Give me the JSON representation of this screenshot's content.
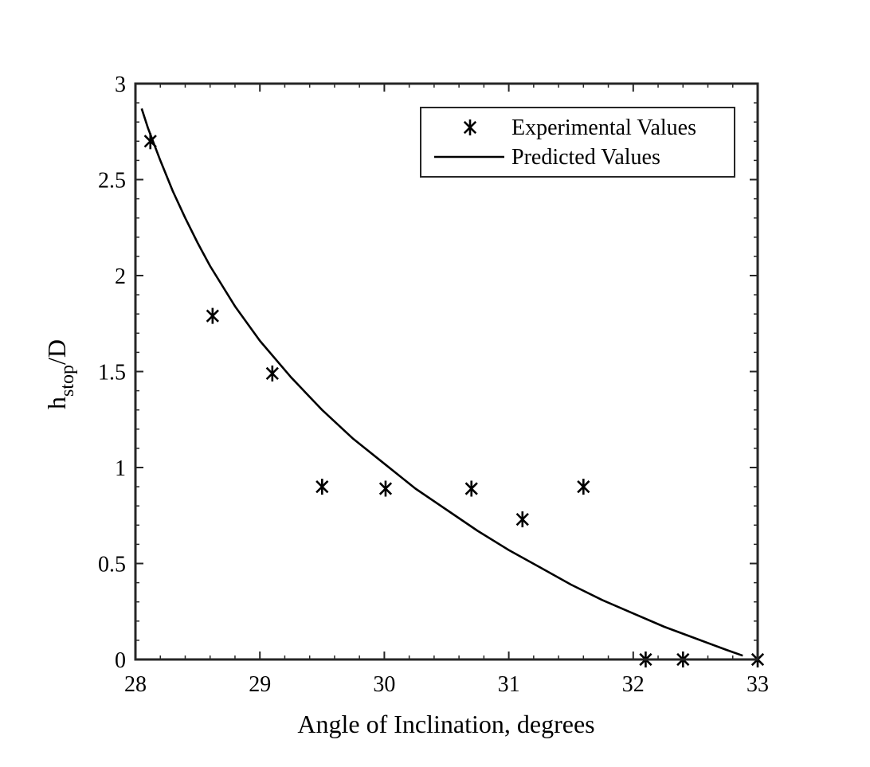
{
  "chart_data": {
    "type": "scatter",
    "title": "",
    "xlabel": "Angle of Inclination,  degrees",
    "ylabel": {
      "base": "h",
      "subscript": "stop",
      "suffix": "/D"
    },
    "xlim": [
      28,
      33
    ],
    "ylim": [
      0,
      3
    ],
    "xticks": [
      28,
      29,
      30,
      31,
      32,
      33
    ],
    "xtick_labels": [
      "28",
      "29",
      "30",
      "31",
      "32",
      "33"
    ],
    "yticks": [
      0,
      0.5,
      1,
      1.5,
      2,
      2.5,
      3
    ],
    "ytick_labels": [
      "0",
      "0.5",
      "1",
      "1.5",
      "2",
      "2.5",
      "3"
    ],
    "grid": false,
    "legend_position": "top-right",
    "series": [
      {
        "name": "Experimental Values",
        "kind": "markers",
        "marker": "asterisk",
        "color": "#000000",
        "x": [
          28.12,
          28.62,
          29.1,
          29.5,
          30.01,
          30.7,
          31.11,
          31.6,
          32.1,
          32.4,
          33.0
        ],
        "y": [
          2.7,
          1.79,
          1.49,
          0.9,
          0.89,
          0.89,
          0.73,
          0.9,
          0.0,
          0.0,
          0.0
        ]
      },
      {
        "name": "Predicted Values",
        "kind": "line",
        "color": "#000000",
        "x": [
          28.05,
          28.1,
          28.2,
          28.3,
          28.4,
          28.5,
          28.6,
          28.8,
          29.0,
          29.25,
          29.5,
          29.75,
          30.0,
          30.25,
          30.5,
          30.75,
          31.0,
          31.25,
          31.5,
          31.75,
          32.0,
          32.25,
          32.5,
          32.75,
          32.88
        ],
        "y": [
          2.87,
          2.77,
          2.6,
          2.44,
          2.3,
          2.17,
          2.05,
          1.84,
          1.66,
          1.47,
          1.3,
          1.15,
          1.02,
          0.89,
          0.78,
          0.67,
          0.57,
          0.48,
          0.39,
          0.31,
          0.24,
          0.17,
          0.11,
          0.05,
          0.02
        ]
      }
    ]
  }
}
